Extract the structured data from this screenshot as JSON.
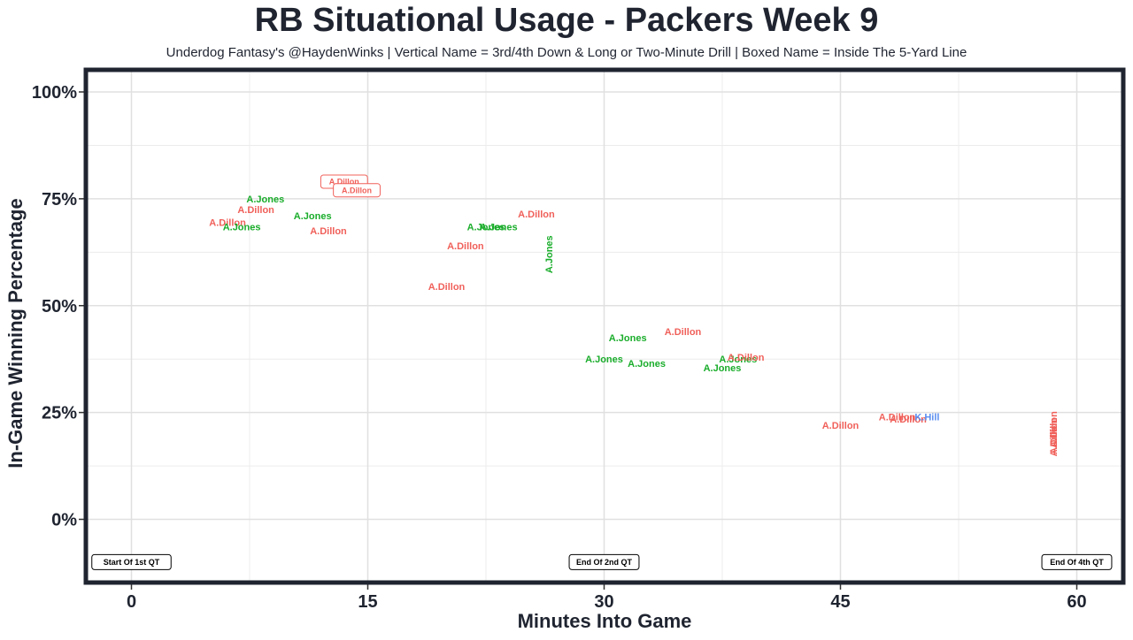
{
  "chart_data": {
    "type": "scatter",
    "title": "RB Situational Usage - Packers Week 9",
    "subtitle": "Underdog Fantasy's @HaydenWinks | Vertical Name = 3rd/4th Down & Long or Two-Minute Drill | Boxed Name = Inside The 5-Yard Line",
    "xlabel": "Minutes Into Game",
    "ylabel": "In-Game Winning Percentage",
    "xlim": [
      -2.5,
      63
    ],
    "ylim": [
      -15,
      105
    ],
    "x_ticks": [
      0,
      15,
      30,
      45,
      60
    ],
    "x_tick_labels": [
      "0",
      "15",
      "30",
      "45",
      "60"
    ],
    "y_ticks": [
      0,
      25,
      50,
      75,
      100
    ],
    "y_tick_labels": [
      "0%",
      "25%",
      "50%",
      "75%",
      "100%"
    ],
    "grid": true,
    "legend": "none",
    "colors": {
      "A.Dillon": "#f0605a",
      "A.Jones": "#1aad2b",
      "K.Hill": "#5b8ef0"
    },
    "points": [
      {
        "x": 6.1,
        "y": 69.5,
        "player": "A.Dillon"
      },
      {
        "x": 7.9,
        "y": 72.5,
        "player": "A.Dillon"
      },
      {
        "x": 8.5,
        "y": 75.0,
        "player": "A.Jones"
      },
      {
        "x": 7.0,
        "y": 68.5,
        "player": "A.Jones"
      },
      {
        "x": 11.5,
        "y": 71.0,
        "player": "A.Jones"
      },
      {
        "x": 12.5,
        "y": 67.5,
        "player": "A.Dillon"
      },
      {
        "x": 13.5,
        "y": 79.0,
        "player": "A.Dillon",
        "boxed": true
      },
      {
        "x": 14.3,
        "y": 77.0,
        "player": "A.Dillon",
        "boxed": true
      },
      {
        "x": 25.7,
        "y": 71.5,
        "player": "A.Dillon"
      },
      {
        "x": 22.5,
        "y": 68.5,
        "player": "A.Jones"
      },
      {
        "x": 23.3,
        "y": 68.5,
        "player": "A.Jones"
      },
      {
        "x": 21.2,
        "y": 64.0,
        "player": "A.Dillon"
      },
      {
        "x": 26.5,
        "y": 62.0,
        "player": "A.Jones",
        "vertical": true
      },
      {
        "x": 20.0,
        "y": 54.5,
        "player": "A.Dillon"
      },
      {
        "x": 35.0,
        "y": 44.0,
        "player": "A.Dillon"
      },
      {
        "x": 31.5,
        "y": 42.5,
        "player": "A.Jones"
      },
      {
        "x": 30.0,
        "y": 37.5,
        "player": "A.Jones"
      },
      {
        "x": 32.7,
        "y": 36.5,
        "player": "A.Jones"
      },
      {
        "x": 38.5,
        "y": 37.5,
        "player": "A.Jones"
      },
      {
        "x": 39.0,
        "y": 38.0,
        "player": "A.Dillon"
      },
      {
        "x": 37.5,
        "y": 35.5,
        "player": "A.Jones"
      },
      {
        "x": 45.0,
        "y": 22.0,
        "player": "A.Dillon"
      },
      {
        "x": 48.6,
        "y": 24.0,
        "player": "A.Dillon"
      },
      {
        "x": 49.3,
        "y": 23.5,
        "player": "A.Dillon"
      },
      {
        "x": 50.5,
        "y": 24.0,
        "player": "K.Hill"
      },
      {
        "x": 58.5,
        "y": 21.0,
        "player": "A.Dillon",
        "vertical": true
      },
      {
        "x": 58.5,
        "y": 19.5,
        "player": "A.Dillon",
        "vertical": true
      },
      {
        "x": 58.5,
        "y": 19.0,
        "player": "A.Dillon",
        "vertical": true
      }
    ],
    "annotations": [
      {
        "x": 0,
        "y": -10,
        "text": "Start Of 1st QT"
      },
      {
        "x": 30,
        "y": -10,
        "text": "End Of 2nd QT"
      },
      {
        "x": 60,
        "y": -10,
        "text": "End Of 4th QT"
      }
    ]
  }
}
